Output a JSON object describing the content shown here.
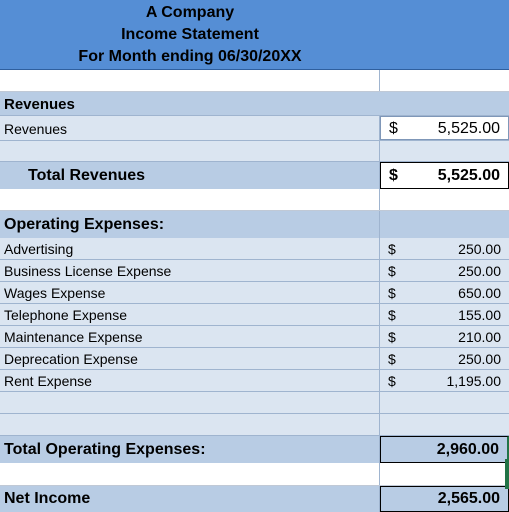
{
  "header": {
    "company": "A Company",
    "title": "Income Statement",
    "period": "For Month ending  06/30/20XX"
  },
  "revenues": {
    "section_label": "Revenues",
    "line_label": "Revenues",
    "line_currency": "$",
    "line_amount": "5,525.00",
    "total_label": "Total Revenues",
    "total_currency": "$",
    "total_amount": "5,525.00"
  },
  "expenses": {
    "section_label": "Operating Expenses:",
    "items": [
      {
        "label": "Advertising",
        "currency": "$",
        "amount": "250.00"
      },
      {
        "label": "Business License Expense",
        "currency": "$",
        "amount": "250.00"
      },
      {
        "label": "Wages Expense",
        "currency": "$",
        "amount": "650.00"
      },
      {
        "label": "Telephone Expense",
        "currency": "$",
        "amount": "155.00"
      },
      {
        "label": "Maintenance Expense",
        "currency": "$",
        "amount": "210.00"
      },
      {
        "label": "Deprecation Expense",
        "currency": "$",
        "amount": "250.00"
      },
      {
        "label": "Rent Expense",
        "currency": "$",
        "amount": "1,195.00"
      }
    ],
    "total_label": "Total Operating Expenses:",
    "total_amount": "2,960.00"
  },
  "net_income": {
    "label": "Net Income",
    "amount": "2,565.00"
  },
  "colors": {
    "header_blue": "#558ed5",
    "band_mid": "#b8cce4",
    "band_light": "#dbe5f1",
    "fill_handle": "#217346"
  }
}
